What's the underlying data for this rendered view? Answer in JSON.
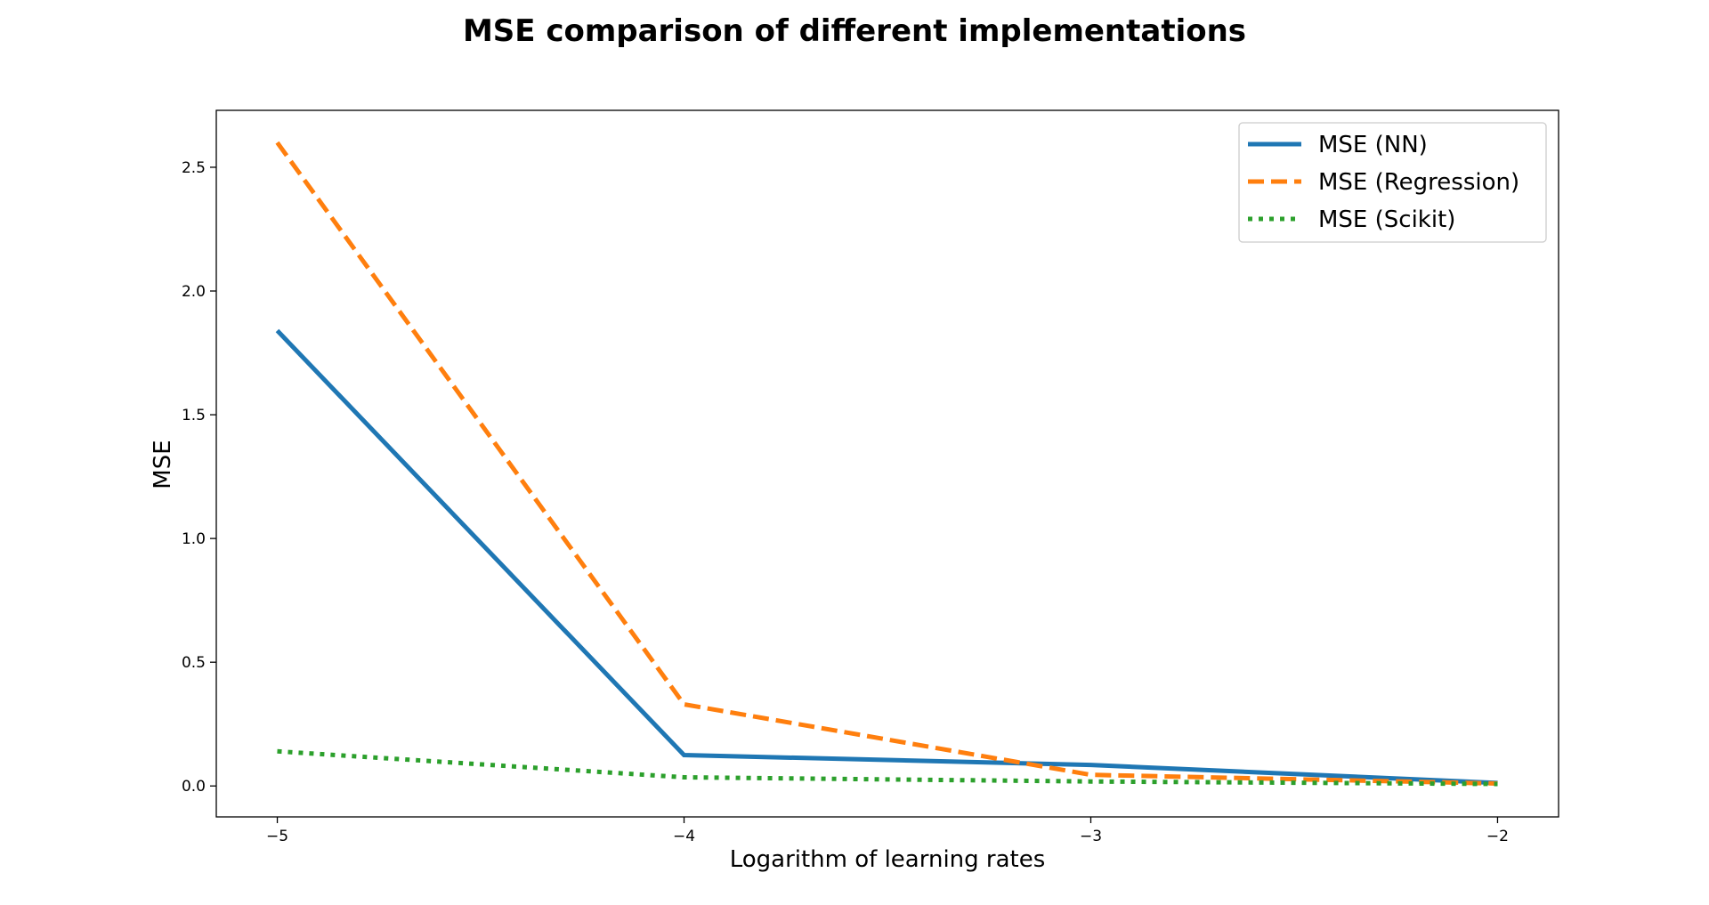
{
  "chart_data": {
    "type": "line",
    "title": "MSE comparison of different implementations",
    "xlabel": "Logarithm of learning rates",
    "ylabel": "MSE",
    "x": [
      -5,
      -4,
      -3,
      -2
    ],
    "xlim": [
      -5.15,
      -1.85
    ],
    "ylim": [
      -0.125,
      2.73
    ],
    "xticks": [
      -5,
      -4,
      -3,
      -2
    ],
    "xtick_labels": [
      "−5",
      "−4",
      "−3",
      "−2"
    ],
    "yticks": [
      0.0,
      0.5,
      1.0,
      1.5,
      2.0,
      2.5
    ],
    "ytick_labels": [
      "0.0",
      "0.5",
      "1.0",
      "1.5",
      "2.0",
      "2.5"
    ],
    "grid": false,
    "legend_position": "top-right",
    "series": [
      {
        "name": "MSE (NN)",
        "values": [
          1.84,
          0.125,
          0.085,
          0.012
        ],
        "color": "#1f77b4",
        "style": "solid"
      },
      {
        "name": "MSE (Regression)",
        "values": [
          2.6,
          0.33,
          0.045,
          0.01
        ],
        "color": "#ff7f0e",
        "style": "dashed"
      },
      {
        "name": "MSE (Scikit)",
        "values": [
          0.14,
          0.035,
          0.018,
          0.008
        ],
        "color": "#2ca02c",
        "style": "dotted"
      }
    ]
  }
}
